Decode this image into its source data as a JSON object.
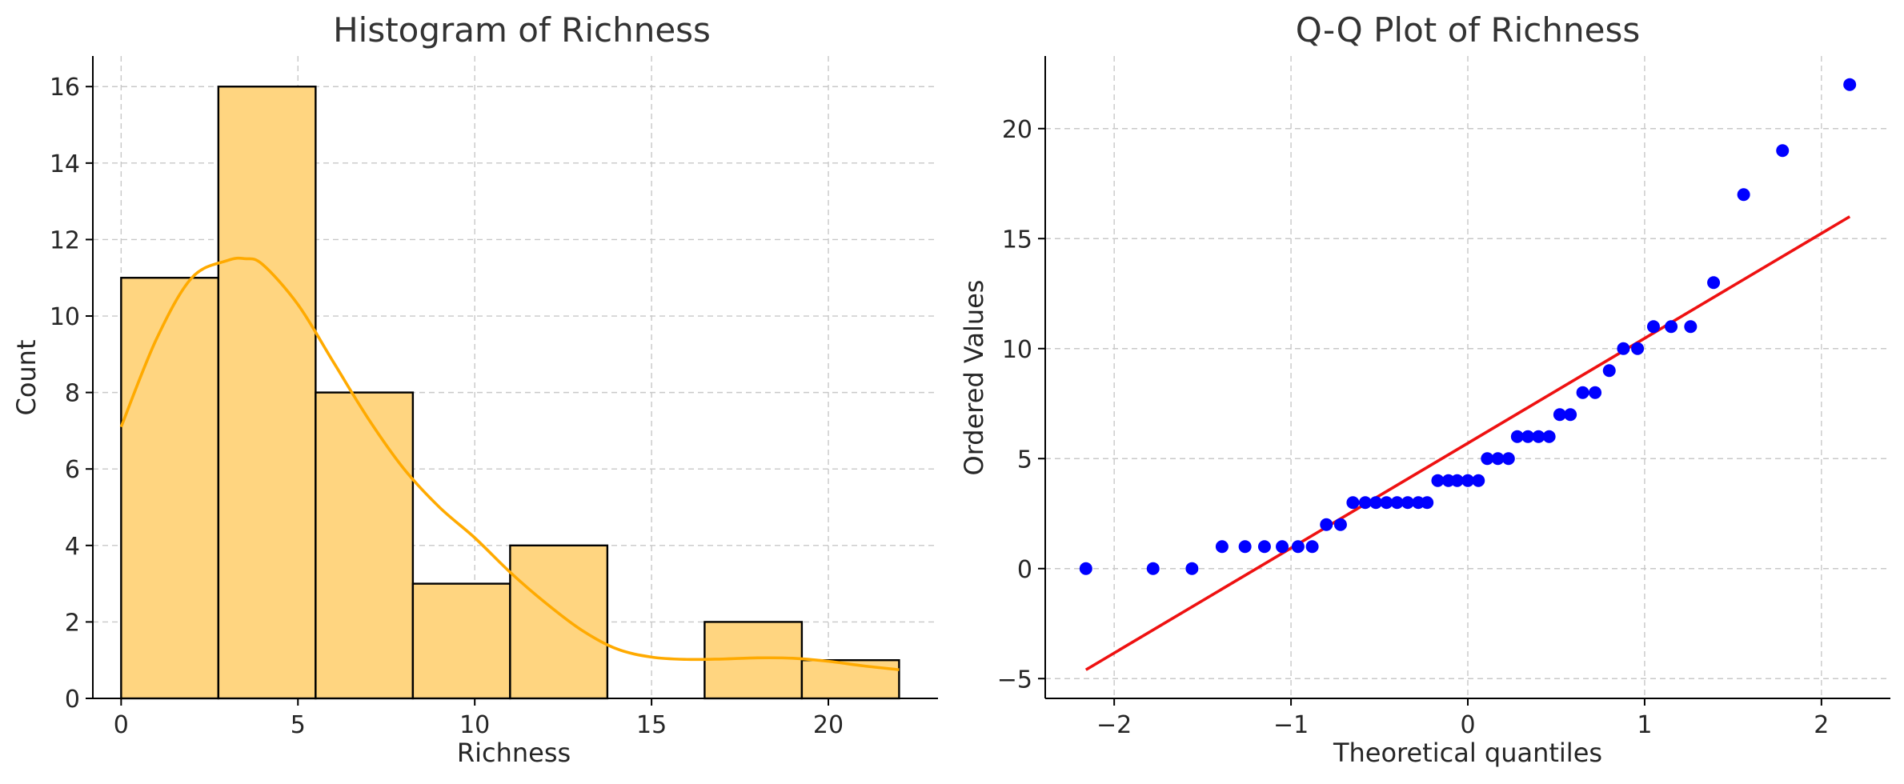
{
  "chart_data": [
    {
      "type": "bar",
      "subtype": "histogram",
      "title": "Histogram of Richness",
      "xlabel": "Richness",
      "ylabel": "Count",
      "bins": [
        {
          "start": 0.0,
          "end": 2.75,
          "count": 11
        },
        {
          "start": 2.75,
          "end": 5.5,
          "count": 16
        },
        {
          "start": 5.5,
          "end": 8.25,
          "count": 8
        },
        {
          "start": 8.25,
          "end": 11.0,
          "count": 3
        },
        {
          "start": 11.0,
          "end": 13.75,
          "count": 4
        },
        {
          "start": 13.75,
          "end": 16.5,
          "count": 0
        },
        {
          "start": 16.5,
          "end": 19.25,
          "count": 2
        },
        {
          "start": 19.25,
          "end": 22.0,
          "count": 1
        }
      ],
      "kde": {
        "x": [
          0,
          1,
          2,
          3,
          3.5,
          4,
          5,
          6,
          7,
          8,
          9,
          10,
          11,
          12,
          13,
          14,
          15,
          16,
          17,
          18,
          19,
          20,
          21,
          22
        ],
        "y": [
          7.1,
          9.4,
          11.0,
          11.45,
          11.5,
          11.35,
          10.3,
          8.8,
          7.3,
          6.0,
          5.0,
          4.2,
          3.3,
          2.5,
          1.8,
          1.3,
          1.08,
          1.02,
          1.03,
          1.06,
          1.05,
          0.97,
          0.85,
          0.75
        ]
      },
      "xlim": [
        -0.8,
        23.1
      ],
      "ylim": [
        0,
        16.8
      ],
      "xticks": [
        0,
        5,
        10,
        15,
        20
      ],
      "yticks": [
        0,
        2,
        4,
        6,
        8,
        10,
        12,
        14,
        16
      ],
      "grid": true,
      "colors": {
        "bar": "#ffd580",
        "edge": "#000000",
        "kde": "#ffaa00"
      }
    },
    {
      "type": "scatter",
      "subtype": "qq",
      "title": "Q-Q Plot of Richness",
      "xlabel": "Theoretical quantiles",
      "ylabel": "Ordered Values",
      "points": {
        "x": [
          -2.16,
          -1.78,
          -1.56,
          -1.39,
          -1.26,
          -1.15,
          -1.05,
          -0.96,
          -0.88,
          -0.8,
          -0.72,
          -0.65,
          -0.58,
          -0.52,
          -0.46,
          -0.4,
          -0.34,
          -0.28,
          -0.23,
          -0.17,
          -0.11,
          -0.06,
          0.0,
          0.06,
          0.11,
          0.17,
          0.23,
          0.28,
          0.34,
          0.4,
          0.46,
          0.52,
          0.58,
          0.65,
          0.72,
          0.8,
          0.88,
          0.96,
          1.05,
          1.15,
          1.26,
          1.39,
          1.56,
          1.78,
          2.16
        ],
        "y": [
          0,
          0,
          0,
          1,
          1,
          1,
          1,
          1,
          1,
          2,
          2,
          3,
          3,
          3,
          3,
          3,
          3,
          3,
          3,
          4,
          4,
          4,
          4,
          4,
          5,
          5,
          5,
          6,
          6,
          6,
          6,
          7,
          7,
          8,
          8,
          9,
          10,
          10,
          11,
          11,
          11,
          13,
          17,
          19,
          22
        ]
      },
      "fit_line": {
        "x": [
          -2.16,
          2.16
        ],
        "y": [
          -4.6,
          16.0
        ]
      },
      "xlim": [
        -2.39,
        2.39
      ],
      "ylim": [
        -5.9,
        23.3
      ],
      "xticks": [
        -2,
        -1,
        0,
        1,
        2
      ],
      "xtick_labels": [
        "−2",
        "−1",
        "0",
        "1",
        "2"
      ],
      "yticks": [
        -5,
        0,
        5,
        10,
        15,
        20
      ],
      "ytick_labels": [
        "−5",
        "0",
        "5",
        "10",
        "15",
        "20"
      ],
      "grid": true,
      "colors": {
        "points": "#0000ff",
        "line": "#ee1111"
      }
    }
  ]
}
